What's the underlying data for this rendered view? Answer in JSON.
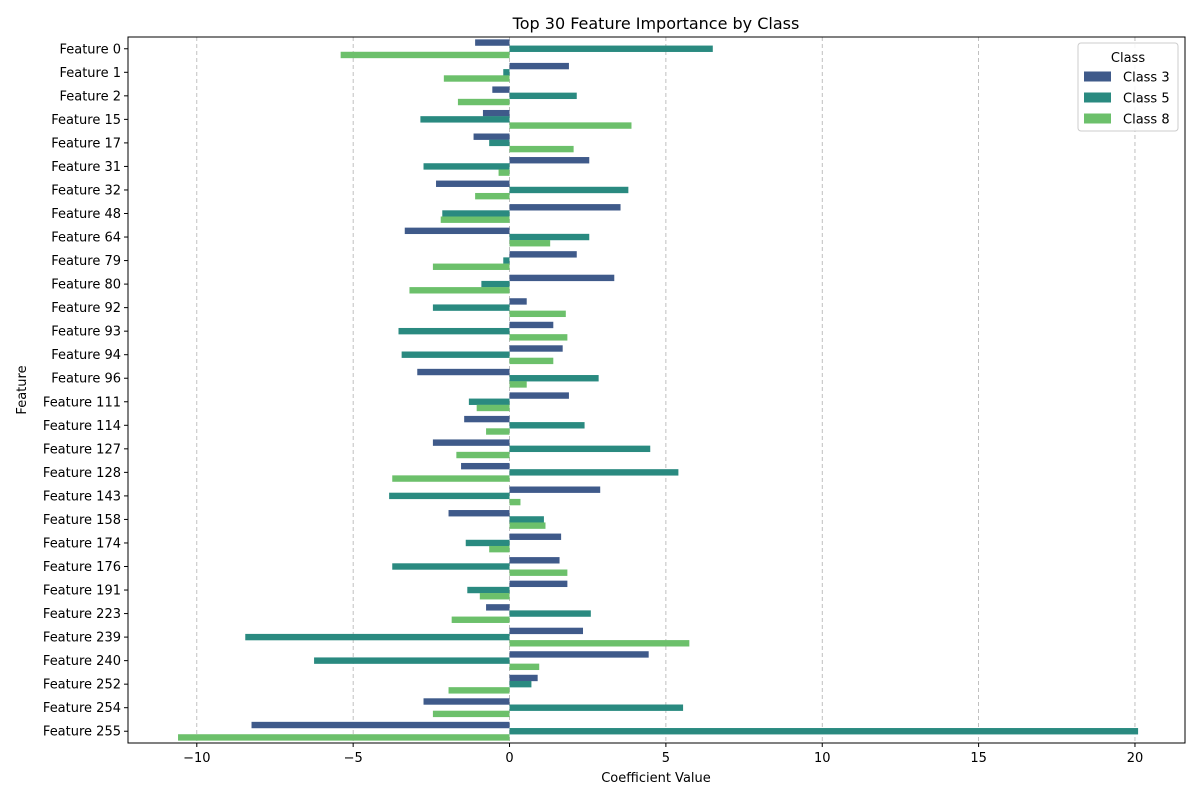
{
  "chart_data": {
    "type": "bar",
    "orientation": "horizontal",
    "title": "Top 30 Feature Importance by Class",
    "xlabel": "Coefficient Value",
    "ylabel": "Feature",
    "xlim": [
      -12.2,
      21.6
    ],
    "xticks": [
      -10,
      -5,
      0,
      5,
      10,
      15,
      20
    ],
    "xtick_labels": [
      "−10",
      "−5",
      "0",
      "5",
      "10",
      "15",
      "20"
    ],
    "grid": "x, dashed",
    "legend": {
      "title": "Class",
      "placement": "top-right"
    },
    "categories": [
      "Feature 0",
      "Feature 1",
      "Feature 2",
      "Feature 15",
      "Feature 17",
      "Feature 31",
      "Feature 32",
      "Feature 48",
      "Feature 64",
      "Feature 79",
      "Feature 80",
      "Feature 92",
      "Feature 93",
      "Feature 94",
      "Feature 96",
      "Feature 111",
      "Feature 114",
      "Feature 127",
      "Feature 128",
      "Feature 143",
      "Feature 158",
      "Feature 174",
      "Feature 176",
      "Feature 191",
      "Feature 223",
      "Feature 239",
      "Feature 240",
      "Feature 252",
      "Feature 254",
      "Feature 255"
    ],
    "series": [
      {
        "name": "Class 3",
        "color": "#3f5a8a",
        "values": [
          -1.1,
          1.9,
          -0.55,
          -0.85,
          -1.15,
          2.55,
          -2.35,
          3.55,
          -3.35,
          2.15,
          3.35,
          0.55,
          1.4,
          1.7,
          -2.95,
          1.9,
          -1.45,
          -2.45,
          -1.55,
          2.9,
          -1.95,
          1.65,
          1.6,
          1.85,
          -0.75,
          2.35,
          4.45,
          0.9,
          -2.75,
          -8.25
        ]
      },
      {
        "name": "Class 5",
        "color": "#2a8a80",
        "values": [
          6.5,
          -0.2,
          2.15,
          -2.85,
          -0.65,
          -2.75,
          3.8,
          -2.15,
          2.55,
          -0.2,
          -0.9,
          -2.45,
          -3.55,
          -3.45,
          2.85,
          -1.3,
          2.4,
          4.5,
          5.4,
          -3.85,
          1.1,
          -1.4,
          -3.75,
          -1.35,
          2.6,
          -8.45,
          -6.25,
          0.7,
          5.55,
          20.1
        ]
      },
      {
        "name": "Class 8",
        "color": "#6cc06b",
        "values": [
          -5.4,
          -2.1,
          -1.65,
          3.9,
          2.05,
          -0.35,
          -1.1,
          -2.2,
          1.3,
          -2.45,
          -3.2,
          1.8,
          1.85,
          1.4,
          0.55,
          -1.05,
          -0.75,
          -1.7,
          -3.75,
          0.35,
          1.15,
          -0.65,
          1.85,
          -0.95,
          -1.85,
          5.75,
          0.95,
          -1.95,
          -2.45,
          -10.6
        ]
      }
    ]
  }
}
